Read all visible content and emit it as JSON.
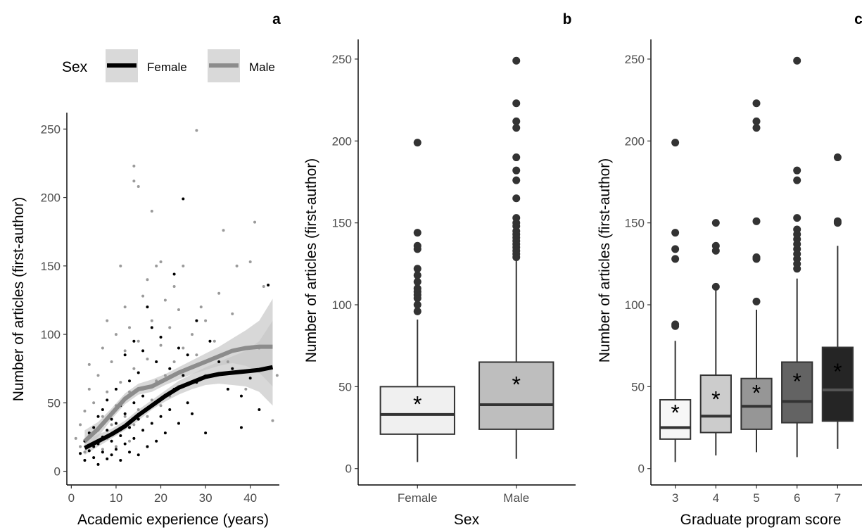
{
  "colors": {
    "female": "#000000",
    "male": "#8c8c8c",
    "female_point": "#000000",
    "male_point": "#9a9a9a",
    "ribbon": "#c8c8c8",
    "legend_key_bg": "#d9d9d9",
    "axis": "#000000",
    "tick_text": "#4d4d4d",
    "outlier": "#333333",
    "box_edge": "#333333"
  },
  "chart_data": [
    {
      "panel_label": "a",
      "type": "scatter",
      "xlabel": "Academic experience (years)",
      "ylabel": "Number of articles (first-author)",
      "xlim": [
        -1,
        46.5
      ],
      "ylim": [
        -10,
        262
      ],
      "xticks": [
        0,
        10,
        20,
        30,
        40
      ],
      "yticks": [
        0,
        50,
        100,
        150,
        200,
        250
      ],
      "grid": false,
      "legend": {
        "position": "top",
        "title": "Sex",
        "entries": [
          "Female",
          "Male"
        ]
      },
      "smooth": [
        {
          "name": "Female",
          "x": [
            3,
            6,
            9,
            12,
            15,
            18,
            21,
            24,
            27,
            30,
            33,
            36,
            39,
            42,
            45
          ],
          "y": [
            17,
            22,
            27,
            33,
            41,
            48,
            55,
            61,
            65,
            69,
            71,
            72,
            73,
            74,
            76
          ],
          "ci_low": [
            12,
            18,
            24,
            30,
            37,
            45,
            51,
            56,
            60,
            63,
            64,
            63,
            62,
            58,
            48
          ],
          "ci_high": [
            22,
            27,
            31,
            37,
            45,
            52,
            59,
            66,
            71,
            76,
            80,
            84,
            88,
            95,
            110
          ]
        },
        {
          "name": "Male",
          "x": [
            3,
            6,
            9,
            12,
            15,
            18,
            21,
            24,
            27,
            30,
            33,
            36,
            39,
            42,
            45
          ],
          "y": [
            22,
            31,
            42,
            53,
            60,
            62,
            67,
            72,
            76,
            80,
            84,
            88,
            90,
            91,
            91
          ],
          "ci_low": [
            14,
            25,
            38,
            49,
            56,
            58,
            63,
            67,
            71,
            74,
            77,
            79,
            77,
            72,
            62
          ],
          "ci_high": [
            30,
            36,
            46,
            57,
            64,
            67,
            71,
            76,
            81,
            86,
            91,
            97,
            103,
            110,
            126
          ]
        }
      ],
      "scatter_female": [
        [
          2,
          13
        ],
        [
          3,
          8
        ],
        [
          3,
          22
        ],
        [
          4,
          15
        ],
        [
          4,
          28
        ],
        [
          5,
          10
        ],
        [
          5,
          18
        ],
        [
          5,
          32
        ],
        [
          6,
          5
        ],
        [
          6,
          20
        ],
        [
          6,
          40
        ],
        [
          7,
          14
        ],
        [
          7,
          25
        ],
        [
          7,
          45
        ],
        [
          8,
          9
        ],
        [
          8,
          30
        ],
        [
          8,
          52
        ],
        [
          9,
          12
        ],
        [
          9,
          22
        ],
        [
          9,
          38
        ],
        [
          10,
          16
        ],
        [
          10,
          35
        ],
        [
          10,
          60
        ],
        [
          11,
          8
        ],
        [
          11,
          26
        ],
        [
          11,
          48
        ],
        [
          12,
          20
        ],
        [
          12,
          42
        ],
        [
          12,
          85
        ],
        [
          13,
          14
        ],
        [
          13,
          32
        ],
        [
          13,
          66
        ],
        [
          14,
          24
        ],
        [
          14,
          50
        ],
        [
          14,
          95
        ],
        [
          15,
          12
        ],
        [
          15,
          38
        ],
        [
          15,
          72
        ],
        [
          16,
          30
        ],
        [
          16,
          55
        ],
        [
          16,
          88
        ],
        [
          17,
          18
        ],
        [
          17,
          46
        ],
        [
          17,
          120
        ],
        [
          18,
          35
        ],
        [
          18,
          62
        ],
        [
          18,
          105
        ],
        [
          19,
          22
        ],
        [
          19,
          50
        ],
        [
          19,
          80
        ],
        [
          20,
          40
        ],
        [
          20,
          65
        ],
        [
          20,
          98
        ],
        [
          21,
          28
        ],
        [
          21,
          55
        ],
        [
          22,
          45
        ],
        [
          22,
          75
        ],
        [
          23,
          144
        ],
        [
          23,
          60
        ],
        [
          24,
          35
        ],
        [
          24,
          90
        ],
        [
          25,
          199
        ],
        [
          25,
          70
        ],
        [
          26,
          50
        ],
        [
          26,
          85
        ],
        [
          27,
          42
        ],
        [
          28,
          65
        ],
        [
          28,
          110
        ],
        [
          30,
          28
        ],
        [
          31,
          70
        ],
        [
          31,
          95
        ],
        [
          33,
          80
        ],
        [
          35,
          60
        ],
        [
          36,
          75
        ],
        [
          38,
          32
        ],
        [
          38,
          55
        ],
        [
          40,
          68
        ],
        [
          42,
          45
        ],
        [
          44,
          136
        ]
      ],
      "scatter_male": [
        [
          1,
          24
        ],
        [
          2,
          18
        ],
        [
          2,
          34
        ],
        [
          3,
          14
        ],
        [
          3,
          44
        ],
        [
          4,
          26
        ],
        [
          4,
          60
        ],
        [
          4,
          78
        ],
        [
          5,
          20
        ],
        [
          5,
          50
        ],
        [
          6,
          30
        ],
        [
          6,
          70
        ],
        [
          7,
          16
        ],
        [
          7,
          40
        ],
        [
          7,
          90
        ],
        [
          8,
          24
        ],
        [
          8,
          58
        ],
        [
          8,
          110
        ],
        [
          9,
          34
        ],
        [
          9,
          80
        ],
        [
          10,
          18
        ],
        [
          10,
          48
        ],
        [
          10,
          100
        ],
        [
          11,
          30
        ],
        [
          11,
          65
        ],
        [
          11,
          150
        ],
        [
          12,
          40
        ],
        [
          12,
          88
        ],
        [
          12,
          120
        ],
        [
          13,
          22
        ],
        [
          13,
          58
        ],
        [
          13,
          105
        ],
        [
          14,
          34
        ],
        [
          14,
          75
        ],
        [
          14,
          223
        ],
        [
          14,
          212
        ],
        [
          15,
          45
        ],
        [
          15,
          95
        ],
        [
          15,
          208
        ],
        [
          16,
          60
        ],
        [
          16,
          128
        ],
        [
          17,
          40
        ],
        [
          17,
          82
        ],
        [
          17,
          140
        ],
        [
          18,
          52
        ],
        [
          18,
          190
        ],
        [
          18,
          110
        ],
        [
          19,
          66
        ],
        [
          19,
          150
        ],
        [
          20,
          48
        ],
        [
          20,
          92
        ],
        [
          20,
          153
        ],
        [
          21,
          70
        ],
        [
          21,
          125
        ],
        [
          22,
          55
        ],
        [
          22,
          105
        ],
        [
          23,
          80
        ],
        [
          23,
          135
        ],
        [
          24,
          62
        ],
        [
          24,
          118
        ],
        [
          25,
          90
        ],
        [
          25,
          150
        ],
        [
          26,
          75
        ],
        [
          27,
          100
        ],
        [
          28,
          249
        ],
        [
          28,
          85
        ],
        [
          29,
          120
        ],
        [
          30,
          70
        ],
        [
          30,
          110
        ],
        [
          32,
          95
        ],
        [
          33,
          130
        ],
        [
          34,
          176
        ],
        [
          35,
          80
        ],
        [
          36,
          115
        ],
        [
          37,
          150
        ],
        [
          39,
          60
        ],
        [
          40,
          153
        ],
        [
          41,
          182
        ],
        [
          42,
          90
        ],
        [
          43,
          135
        ],
        [
          45,
          37
        ],
        [
          46,
          70
        ]
      ]
    },
    {
      "panel_label": "b",
      "type": "box",
      "xlabel": "Sex",
      "ylabel": "Number of articles (first-author)",
      "categories": [
        "Female",
        "Male"
      ],
      "ylim": [
        -10,
        262
      ],
      "yticks": [
        0,
        50,
        100,
        150,
        200,
        250
      ],
      "grid": false,
      "boxes": [
        {
          "name": "Female",
          "whisker_low": 4,
          "q1": 21,
          "median": 33,
          "q3": 50,
          "whisker_high": 91,
          "mean": 40,
          "fill": "#f0f0f0",
          "outliers": [
            96,
            100,
            104,
            106,
            108,
            110,
            114,
            118,
            122,
            134,
            136,
            144,
            199
          ]
        },
        {
          "name": "Male",
          "whisker_low": 6,
          "q1": 24,
          "median": 39,
          "q3": 65,
          "whisker_high": 127,
          "mean": 52,
          "fill": "#bebebe",
          "outliers": [
            129,
            131,
            133,
            135,
            137,
            139,
            141,
            143,
            145,
            148,
            150,
            153,
            165,
            176,
            182,
            190,
            208,
            212,
            223,
            249
          ]
        }
      ]
    },
    {
      "panel_label": "c",
      "type": "box",
      "xlabel": "Graduate program score",
      "ylabel": "Number of articles (first-author)",
      "categories": [
        "3",
        "4",
        "5",
        "6",
        "7"
      ],
      "ylim": [
        -10,
        262
      ],
      "yticks": [
        0,
        50,
        100,
        150,
        200,
        250
      ],
      "grid": false,
      "boxes": [
        {
          "name": "3",
          "whisker_low": 4,
          "q1": 18,
          "median": 25,
          "q3": 42,
          "whisker_high": 78,
          "mean": 35,
          "fill": "#f7f7f7",
          "outliers": [
            87,
            88,
            128,
            134,
            144,
            199
          ]
        },
        {
          "name": "4",
          "whisker_low": 8,
          "q1": 22,
          "median": 32,
          "q3": 57,
          "whisker_high": 110,
          "mean": 43,
          "fill": "#cccccc",
          "outliers": [
            111,
            133,
            136,
            150
          ]
        },
        {
          "name": "5",
          "whisker_low": 10,
          "q1": 24,
          "median": 38,
          "q3": 55,
          "whisker_high": 97,
          "mean": 47,
          "fill": "#969696",
          "outliers": [
            102,
            128,
            129,
            151,
            208,
            212,
            223
          ]
        },
        {
          "name": "6",
          "whisker_low": 7,
          "q1": 28,
          "median": 41,
          "q3": 65,
          "whisker_high": 116,
          "mean": 54,
          "fill": "#636363",
          "outliers": [
            122,
            125,
            128,
            131,
            134,
            137,
            140,
            143,
            146,
            153,
            176,
            182,
            249
          ]
        },
        {
          "name": "7",
          "whisker_low": 12,
          "q1": 29,
          "median": 48,
          "q3": 74,
          "whisker_high": 136,
          "mean": 60,
          "fill": "#252525",
          "outliers": [
            150,
            151,
            190
          ]
        }
      ]
    }
  ]
}
